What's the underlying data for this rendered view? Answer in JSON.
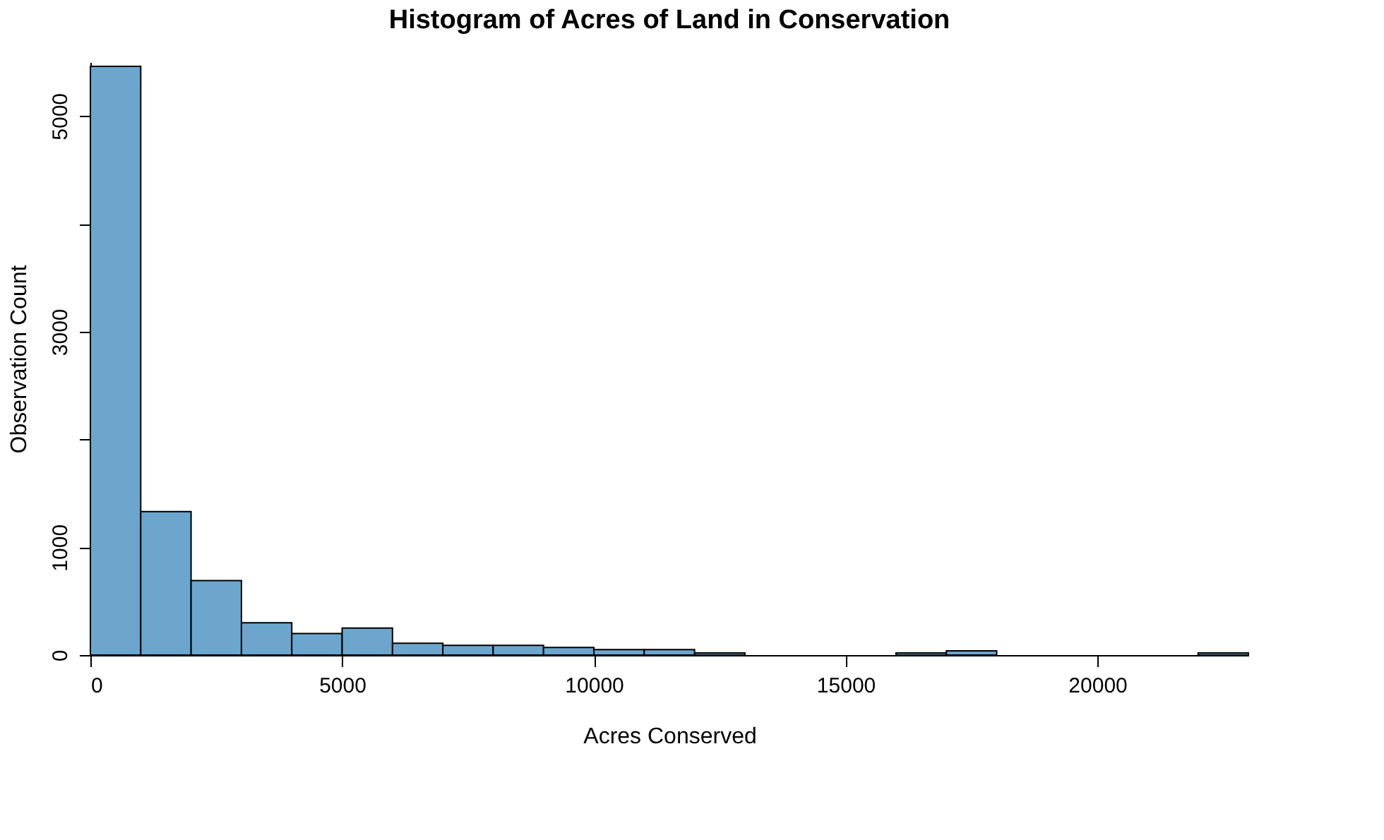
{
  "chart_data": {
    "type": "histogram",
    "title": "Histogram of Acres of Land in Conservation",
    "xlabel": "Acres Conserved",
    "ylabel": "Observation Count",
    "bins": [
      0,
      1000,
      2000,
      3000,
      4000,
      5000,
      6000,
      7000,
      8000,
      9000,
      10000,
      11000,
      12000,
      13000,
      14000,
      15000,
      16000,
      17000,
      18000,
      19000,
      20000,
      21000,
      22000,
      23000
    ],
    "values": [
      5460,
      1330,
      690,
      300,
      200,
      250,
      110,
      90,
      90,
      70,
      50,
      50,
      20,
      0,
      0,
      0,
      20,
      40,
      0,
      0,
      0,
      0,
      20
    ],
    "color": "#6ca6cd",
    "xlim": [
      0,
      23000
    ],
    "xticks": [
      0,
      5000,
      10000,
      15000,
      20000
    ],
    "ylim": [
      0,
      5500
    ],
    "yticks": [
      0,
      1000,
      {
        "value": 2000,
        "label": null
      },
      3000,
      {
        "value": 4000,
        "label": null
      },
      5000
    ],
    "grid": false
  }
}
